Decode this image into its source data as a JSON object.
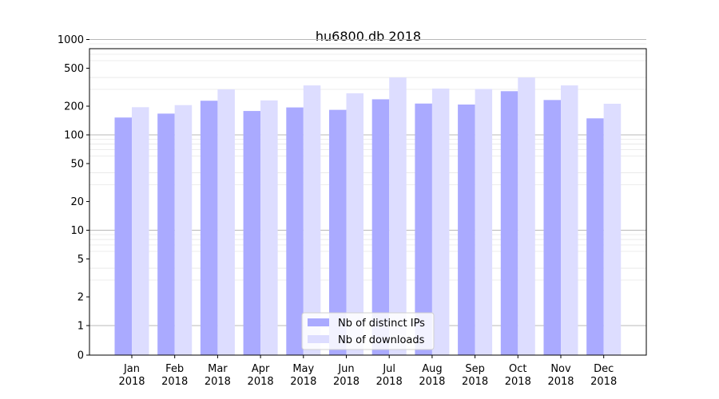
{
  "chart_data": {
    "type": "bar",
    "title": "hu6800.db 2018",
    "xlabel": "",
    "ylabel": "",
    "scale": "symlog",
    "ylim": [
      0,
      1300
    ],
    "yticks": [
      0,
      1,
      2,
      5,
      10,
      20,
      50,
      100,
      200,
      500,
      1000
    ],
    "ytick_labels": [
      "0",
      "1",
      "2",
      "5",
      "10",
      "20",
      "50",
      "100",
      "200",
      "500",
      "1000"
    ],
    "categories": [
      "Jan\n2018",
      "Feb\n2018",
      "Mar\n2018",
      "Apr\n2018",
      "May\n2018",
      "Jun\n2018",
      "Jul\n2018",
      "Aug\n2018",
      "Sep\n2018",
      "Oct\n2018",
      "Nov\n2018",
      "Dec\n2018"
    ],
    "category_lines": [
      [
        "Jan",
        "2018"
      ],
      [
        "Feb",
        "2018"
      ],
      [
        "Mar",
        "2018"
      ],
      [
        "Apr",
        "2018"
      ],
      [
        "May",
        "2018"
      ],
      [
        "Jun",
        "2018"
      ],
      [
        "Jul",
        "2018"
      ],
      [
        "Aug",
        "2018"
      ],
      [
        "Sep",
        "2018"
      ],
      [
        "Oct",
        "2018"
      ],
      [
        "Nov",
        "2018"
      ],
      [
        "Dec",
        "2018"
      ]
    ],
    "series": [
      {
        "name": "Nb of distinct IPs",
        "color": "#aaaaff",
        "values": [
          152,
          167,
          228,
          178,
          194,
          183,
          236,
          213,
          208,
          287,
          232,
          149
        ]
      },
      {
        "name": "Nb of downloads",
        "color": "#ddddff",
        "values": [
          195,
          205,
          300,
          230,
          330,
          273,
          400,
          306,
          303,
          400,
          330,
          212
        ]
      }
    ],
    "grid": true,
    "legend_position": "lower center"
  }
}
